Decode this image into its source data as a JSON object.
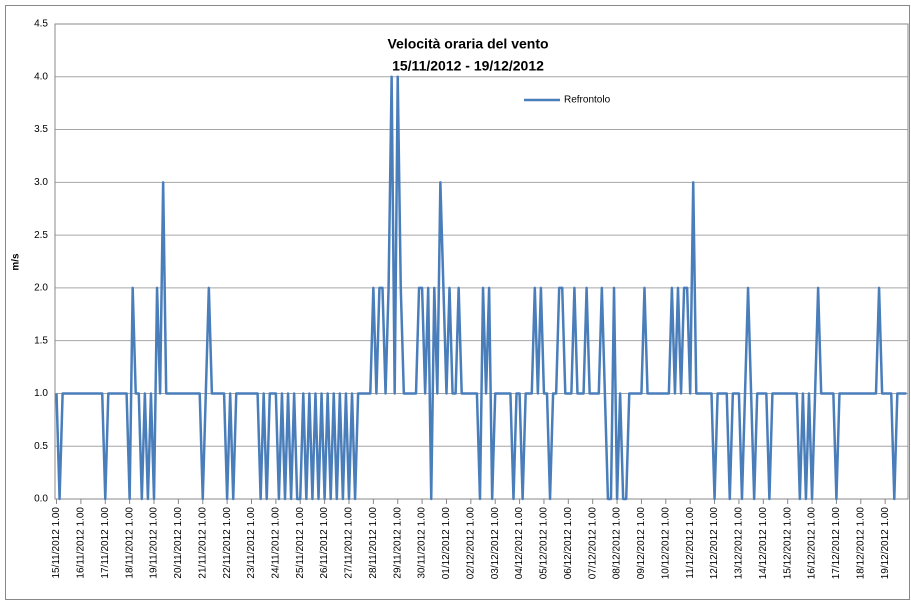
{
  "chart_data": {
    "type": "line",
    "title": "Velocità oraria del vento",
    "subtitle": "15/11/2012 - 19/12/2012",
    "y_label": "m/s",
    "legend": "top-right",
    "grid": true,
    "ylim": [
      0,
      4.5
    ],
    "yticks": [
      {
        "value": 0,
        "label": "0.0"
      },
      0.5,
      {
        "value": 1,
        "label": "1.0"
      },
      1.5,
      {
        "value": 2,
        "label": "2.0"
      },
      2.5,
      {
        "value": 3,
        "label": "3.0"
      },
      3.5,
      {
        "value": 4,
        "label": "4.0"
      },
      4.5
    ],
    "categories": [
      "15/11/2012 1.00",
      null,
      null,
      null,
      null,
      null,
      null,
      null,
      "16/11/2012 1.00",
      null,
      null,
      null,
      null,
      null,
      null,
      null,
      "17/11/2012 1.00",
      null,
      null,
      null,
      null,
      null,
      null,
      null,
      "18/11/2012 1.00",
      null,
      null,
      null,
      null,
      null,
      null,
      null,
      "19/11/2012 1.00",
      null,
      null,
      null,
      null,
      null,
      null,
      null,
      "20/11/2012 1.00",
      null,
      null,
      null,
      null,
      null,
      null,
      null,
      "21/11/2012 1.00",
      null,
      null,
      null,
      null,
      null,
      null,
      null,
      "22/11/2012 1.00",
      null,
      null,
      null,
      null,
      null,
      null,
      null,
      "23/11/2012 1.00",
      null,
      null,
      null,
      null,
      null,
      null,
      null,
      "24/11/2012 1.00",
      null,
      null,
      null,
      null,
      null,
      null,
      null,
      "25/11/2012 1.00",
      null,
      null,
      null,
      null,
      null,
      null,
      null,
      "26/11/2012 1.00",
      null,
      null,
      null,
      null,
      null,
      null,
      null,
      "27/11/2012 1.00",
      null,
      null,
      null,
      null,
      null,
      null,
      null,
      "28/11/2012 1.00",
      null,
      null,
      null,
      null,
      null,
      null,
      null,
      "29/11/2012 1.00",
      null,
      null,
      null,
      null,
      null,
      null,
      null,
      "30/11/2012 1.00",
      null,
      null,
      null,
      null,
      null,
      null,
      null,
      "01/12/2012 1.00",
      null,
      null,
      null,
      null,
      null,
      null,
      null,
      "02/12/2012 1.00",
      null,
      null,
      null,
      null,
      null,
      null,
      null,
      "03/12/2012 1.00",
      null,
      null,
      null,
      null,
      null,
      null,
      null,
      "04/12/2012 1.00",
      null,
      null,
      null,
      null,
      null,
      null,
      null,
      "05/12/2012 1.00",
      null,
      null,
      null,
      null,
      null,
      null,
      null,
      "06/12/2012 1.00",
      null,
      null,
      null,
      null,
      null,
      null,
      null,
      "07/12/2012 1.00",
      null,
      null,
      null,
      null,
      null,
      null,
      null,
      "08/12/2012 1.00",
      null,
      null,
      null,
      null,
      null,
      null,
      null,
      "09/12/2012 1.00",
      null,
      null,
      null,
      null,
      null,
      null,
      null,
      "10/12/2012 1.00",
      null,
      null,
      null,
      null,
      null,
      null,
      null,
      "11/12/2012 1.00",
      null,
      null,
      null,
      null,
      null,
      null,
      null,
      "12/12/2012 1.00",
      null,
      null,
      null,
      null,
      null,
      null,
      null,
      "13/12/2012 1.00",
      null,
      null,
      null,
      null,
      null,
      null,
      null,
      "14/12/2012 1.00",
      null,
      null,
      null,
      null,
      null,
      null,
      null,
      "15/12/2012 1.00",
      null,
      null,
      null,
      null,
      null,
      null,
      null,
      "16/12/2012 1.00",
      null,
      null,
      null,
      null,
      null,
      null,
      null,
      "17/12/2012 1.00",
      null,
      null,
      null,
      null,
      null,
      null,
      null,
      "18/12/2012 1.00",
      null,
      null,
      null,
      null,
      null,
      null,
      null,
      "19/12/2012 1.00",
      null,
      null,
      null,
      null,
      null,
      null,
      null
    ],
    "series": [
      {
        "name": "Refrontolo",
        "color": "#4a7ebb",
        "values": [
          1,
          0,
          1,
          1,
          1,
          1,
          1,
          1,
          1,
          1,
          1,
          1,
          1,
          1,
          1,
          1,
          0,
          1,
          1,
          1,
          1,
          1,
          1,
          1,
          0,
          2,
          1,
          1,
          0,
          1,
          0,
          1,
          0,
          2,
          1,
          3,
          1,
          1,
          1,
          1,
          1,
          1,
          1,
          1,
          1,
          1,
          1,
          1,
          0,
          1,
          2,
          1,
          1,
          1,
          1,
          1,
          0,
          1,
          0,
          1,
          1,
          1,
          1,
          1,
          1,
          1,
          1,
          0,
          1,
          0,
          1,
          1,
          1,
          0,
          1,
          0,
          1,
          0,
          1,
          0,
          0,
          1,
          0,
          1,
          0,
          1,
          0,
          1,
          0,
          1,
          0,
          1,
          0,
          1,
          0,
          1,
          0,
          1,
          0,
          1,
          1,
          1,
          1,
          1,
          2,
          1,
          2,
          2,
          1,
          2,
          4,
          1,
          4,
          2,
          1,
          1,
          1,
          1,
          1,
          2,
          2,
          1,
          2,
          0,
          2,
          1,
          3,
          2,
          1,
          2,
          1,
          1,
          2,
          1,
          1,
          1,
          1,
          1,
          1,
          0,
          2,
          1,
          2,
          0,
          1,
          1,
          1,
          1,
          1,
          1,
          0,
          1,
          1,
          0,
          1,
          1,
          1,
          2,
          1,
          2,
          1,
          1,
          0,
          1,
          1,
          2,
          2,
          1,
          1,
          1,
          2,
          1,
          1,
          1,
          2,
          1,
          1,
          1,
          1,
          2,
          1,
          0,
          0,
          2,
          0,
          1,
          0,
          0,
          1,
          1,
          1,
          1,
          1,
          2,
          1,
          1,
          1,
          1,
          1,
          1,
          1,
          1,
          2,
          1,
          2,
          1,
          2,
          2,
          1,
          3,
          1,
          1,
          1,
          1,
          1,
          1,
          0,
          1,
          1,
          1,
          1,
          0,
          1,
          1,
          1,
          0,
          1,
          2,
          1,
          0,
          1,
          1,
          1,
          1,
          0,
          1,
          1,
          1,
          1,
          1,
          1,
          1,
          1,
          1,
          0,
          1,
          0,
          1,
          0,
          1,
          2,
          1,
          1,
          1,
          1,
          1,
          0,
          1,
          1,
          1,
          1,
          1,
          1,
          1,
          1,
          1,
          1,
          1,
          1,
          1,
          2,
          1,
          1,
          1,
          1,
          0,
          1,
          1,
          1,
          1
        ]
      }
    ]
  }
}
